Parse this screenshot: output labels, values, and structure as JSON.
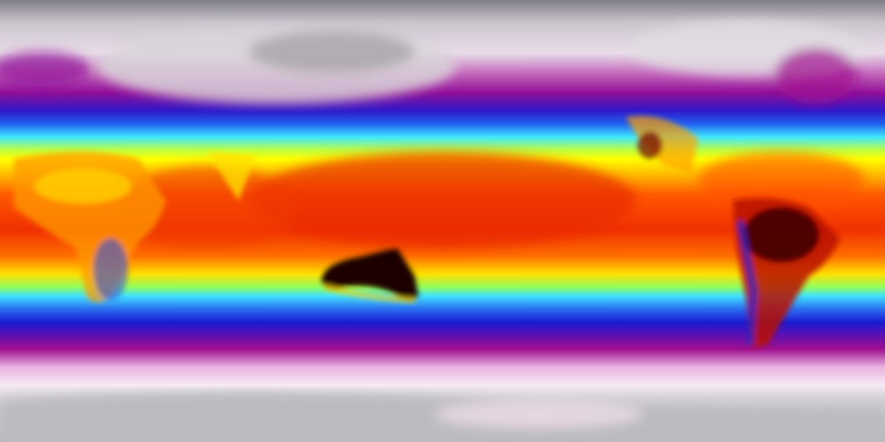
{
  "map": {
    "projection": "equirectangular",
    "variable": "temperature",
    "colormap": [
      "#7f7f86",
      "#d8d4da",
      "#f4e8f4",
      "#b0108f",
      "#6a10b0",
      "#2222dd",
      "#2a6cf0",
      "#40e8ff",
      "#f8f800",
      "#ffb000",
      "#ff5000",
      "#e01000",
      "#700000",
      "#100000"
    ]
  }
}
